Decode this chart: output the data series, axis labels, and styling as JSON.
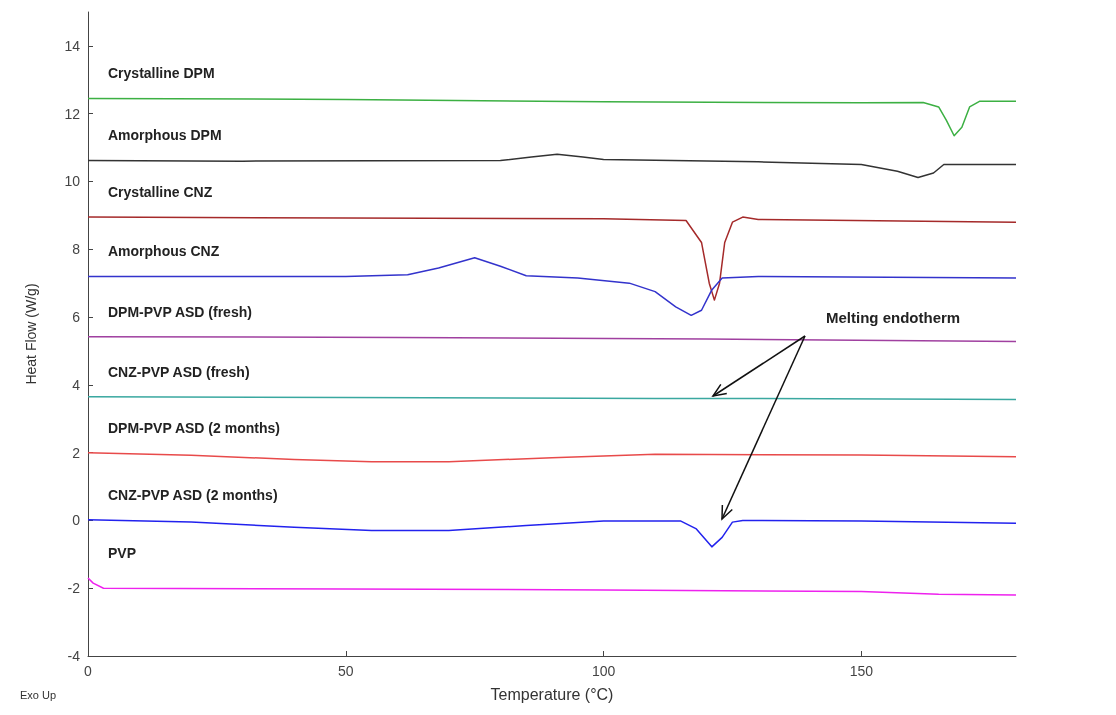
{
  "chart_data": {
    "type": "line",
    "xlabel": "Temperature (°C)",
    "ylabel": "Heat Flow (W/g)",
    "xlim": [
      0,
      180
    ],
    "xticks": [
      0,
      50,
      100,
      150
    ],
    "ylim": [
      -4,
      15
    ],
    "yticks": [
      -4,
      -2,
      0,
      2,
      4,
      6,
      8,
      10,
      12,
      14
    ],
    "grid": false,
    "legend": false,
    "marker": "none",
    "line_style": "solid",
    "annotations": [
      "Melting endotherm",
      "Exo Up"
    ],
    "series": [
      {
        "name": "Crystalline DPM",
        "color": "#3cb043",
        "x": [
          0,
          50,
          100,
          150,
          162,
          165,
          166.5,
          168,
          169.5,
          171,
          173,
          180
        ],
        "values": [
          12.45,
          12.42,
          12.35,
          12.32,
          12.33,
          12.2,
          11.8,
          11.35,
          11.6,
          12.2,
          12.37,
          12.37
        ]
      },
      {
        "name": "Amorphous DPM",
        "color": "#333333",
        "x": [
          0,
          30,
          80,
          86,
          91,
          96,
          100,
          130,
          150,
          157,
          161,
          164,
          166,
          180
        ],
        "values": [
          10.62,
          10.6,
          10.62,
          10.72,
          10.8,
          10.72,
          10.65,
          10.58,
          10.5,
          10.3,
          10.12,
          10.25,
          10.5,
          10.5
        ]
      },
      {
        "name": "Crystalline CNZ",
        "color": "#a52a2a",
        "x": [
          0,
          50,
          100,
          116,
          119,
          120.5,
          121.5,
          122.5,
          123.5,
          125,
          127,
          130,
          180
        ],
        "values": [
          8.95,
          8.92,
          8.9,
          8.85,
          8.2,
          7.0,
          6.5,
          7.0,
          8.2,
          8.8,
          8.95,
          8.88,
          8.8
        ]
      },
      {
        "name": "Amorphous CNZ",
        "color": "#3333cc",
        "x": [
          0,
          50,
          62,
          68,
          75,
          80,
          85,
          95,
          105,
          110,
          114,
          117,
          119,
          121,
          123,
          130,
          180
        ],
        "values": [
          7.2,
          7.2,
          7.25,
          7.45,
          7.75,
          7.5,
          7.22,
          7.15,
          7.0,
          6.75,
          6.3,
          6.05,
          6.2,
          6.8,
          7.15,
          7.2,
          7.15
        ]
      },
      {
        "name": "DPM-PVP ASD (fresh)",
        "color": "#a040a0",
        "x": [
          0,
          60,
          120,
          180
        ],
        "values": [
          5.42,
          5.4,
          5.35,
          5.28
        ]
      },
      {
        "name": "CNZ-PVP ASD (fresh)",
        "color": "#3aa8a0",
        "x": [
          0,
          50,
          110,
          125,
          180
        ],
        "values": [
          3.65,
          3.63,
          3.6,
          3.6,
          3.57
        ]
      },
      {
        "name": "DPM-PVP ASD (2 months)",
        "color": "#e84a4a",
        "x": [
          0,
          20,
          40,
          55,
          70,
          90,
          110,
          150,
          180
        ],
        "values": [
          2.0,
          1.92,
          1.8,
          1.73,
          1.73,
          1.85,
          1.95,
          1.93,
          1.88
        ]
      },
      {
        "name": "CNZ-PVP ASD (2 months)",
        "color": "#2222ee",
        "x": [
          0,
          20,
          40,
          55,
          70,
          85,
          100,
          115,
          118,
          121,
          123,
          125,
          127,
          150,
          180
        ],
        "values": [
          0.02,
          -0.05,
          -0.2,
          -0.3,
          -0.3,
          -0.15,
          -0.02,
          -0.02,
          -0.25,
          -0.78,
          -0.5,
          -0.05,
          0.0,
          -0.02,
          -0.08
        ]
      },
      {
        "name": "PVP",
        "color": "#ee22ee",
        "x": [
          0,
          1,
          3,
          50,
          100,
          150,
          165,
          180
        ],
        "values": [
          -1.7,
          -1.85,
          -2.0,
          -2.02,
          -2.05,
          -2.1,
          -2.18,
          -2.2
        ]
      }
    ]
  }
}
